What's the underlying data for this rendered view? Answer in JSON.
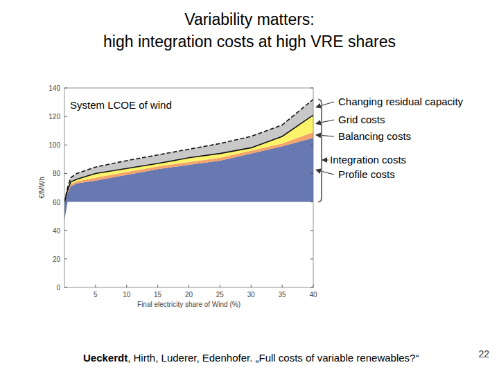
{
  "chart_data": {
    "type": "area",
    "stacked": true,
    "title": "Variability matters:",
    "subtitle": "high integration costs at high VRE shares",
    "annotation": "System LCOE of wind",
    "bracket_label": "Integration costs",
    "x_label": "Final electricity share of Wind (%)",
    "y_label": "€/MWh",
    "x": [
      0,
      0.5,
      1,
      2,
      5,
      10,
      15,
      20,
      25,
      30,
      35,
      40
    ],
    "xlim": [
      0,
      40
    ],
    "xticks": [
      5,
      10,
      15,
      20,
      25,
      30,
      35,
      40
    ],
    "ylim": [
      0,
      140
    ],
    "yticks": [
      0,
      20,
      40,
      60,
      80,
      100,
      120,
      140
    ],
    "grid": false,
    "series": [
      {
        "color": "#ffffff",
        "values": [
          47,
          60,
          60,
          60,
          60,
          60,
          60,
          60,
          60,
          60,
          60,
          60
        ]
      },
      {
        "name": "Profile costs",
        "color": "#6878b0",
        "values": [
          13,
          6,
          11,
          13,
          15,
          19,
          23,
          26,
          29,
          34,
          39,
          45
        ]
      },
      {
        "name": "Balancing costs",
        "color": "#f4a46a",
        "values": [
          0,
          1,
          1.5,
          1.5,
          2,
          2,
          2,
          2,
          2,
          2,
          2,
          4
        ]
      },
      {
        "name": "Grid costs",
        "color": "#fbf46a",
        "line_style": "solid",
        "values": [
          0,
          1,
          1.5,
          1.5,
          3,
          2.5,
          2,
          3,
          3,
          2,
          5,
          12
        ]
      },
      {
        "name": "Changing residual capacity",
        "color": "#c8c8c8",
        "line_style": "dashed",
        "values": [
          0,
          2,
          3,
          4,
          4.5,
          5.5,
          6,
          6,
          7,
          8,
          8,
          11
        ]
      }
    ]
  },
  "footer": {
    "author_bold": "Ueckerdt",
    "citation": ", Hirth, Luderer, Edenhofer. „Full costs of variable renewables?“",
    "page": "22"
  }
}
